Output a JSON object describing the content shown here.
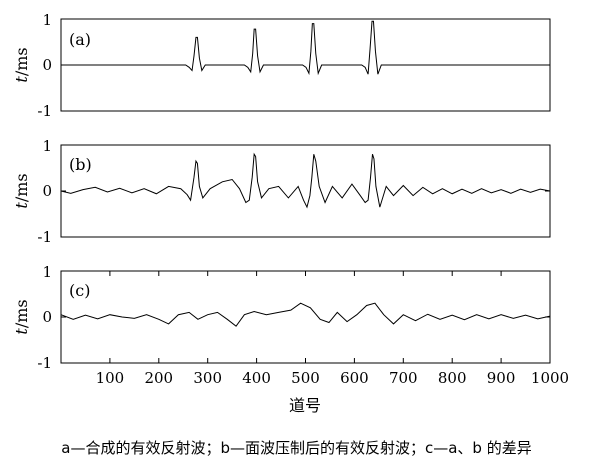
{
  "chart_data": [
    {
      "type": "line",
      "panel_label": "(a)",
      "ylabel": "t/ms",
      "ylabel_italic_part": "t",
      "ylabel_unit_part": "/ms",
      "xlim": [
        0,
        1000
      ],
      "ylim": [
        -1,
        1
      ],
      "yticks": [
        1,
        0,
        -1
      ],
      "grid": false,
      "x": [
        0,
        255,
        262,
        268,
        272,
        276,
        279,
        283,
        288,
        295,
        375,
        382,
        388,
        392,
        395,
        398,
        402,
        407,
        414,
        494,
        501,
        507,
        511,
        514,
        517,
        521,
        526,
        533,
        615,
        622,
        628,
        632,
        636,
        639,
        643,
        648,
        655,
        1000
      ],
      "y": [
        0,
        0,
        -0.05,
        -0.12,
        0.2,
        0.6,
        0.6,
        0.15,
        -0.12,
        0,
        0,
        -0.05,
        -0.15,
        0.25,
        0.78,
        0.78,
        0.2,
        -0.15,
        0,
        0,
        -0.05,
        -0.18,
        0.3,
        0.9,
        0.9,
        0.25,
        -0.18,
        0,
        0,
        -0.05,
        -0.2,
        0.35,
        0.95,
        0.95,
        0.3,
        -0.2,
        0,
        0
      ]
    },
    {
      "type": "line",
      "panel_label": "(b)",
      "ylabel": "t/ms",
      "ylabel_italic_part": "t",
      "ylabel_unit_part": "/ms",
      "xlim": [
        0,
        1000
      ],
      "ylim": [
        -1,
        1
      ],
      "yticks": [
        1,
        0,
        -1
      ],
      "grid": false,
      "x": [
        0,
        20,
        45,
        70,
        95,
        120,
        145,
        170,
        195,
        220,
        245,
        258,
        265,
        272,
        276,
        279,
        283,
        290,
        305,
        330,
        350,
        365,
        378,
        385,
        391,
        395,
        398,
        402,
        410,
        425,
        445,
        465,
        485,
        496,
        503,
        509,
        513,
        517,
        521,
        528,
        540,
        555,
        575,
        595,
        612,
        622,
        628,
        633,
        637,
        640,
        644,
        652,
        665,
        680,
        700,
        720,
        740,
        760,
        780,
        800,
        820,
        840,
        860,
        880,
        900,
        920,
        940,
        960,
        980,
        1000
      ],
      "y": [
        0,
        -0.05,
        0.03,
        0.08,
        -0.02,
        0.06,
        -0.04,
        0.05,
        -0.06,
        0.1,
        0.05,
        -0.08,
        -0.2,
        0.3,
        0.65,
        0.6,
        0.1,
        -0.15,
        0.05,
        0.2,
        0.25,
        0.05,
        -0.25,
        -0.2,
        0.3,
        0.8,
        0.75,
        0.2,
        -0.15,
        0.05,
        0.1,
        -0.15,
        0.1,
        -0.2,
        -0.35,
        -0.1,
        0.3,
        0.8,
        0.65,
        0.1,
        -0.25,
        0.1,
        -0.15,
        0.15,
        -0.1,
        -0.25,
        -0.2,
        0.3,
        0.8,
        0.7,
        0.1,
        -0.35,
        0.1,
        -0.1,
        0.12,
        -0.1,
        0.08,
        -0.06,
        0.05,
        -0.06,
        0.04,
        -0.05,
        0.05,
        -0.04,
        0.03,
        -0.05,
        0.04,
        -0.03,
        0.04,
        0
      ]
    },
    {
      "type": "line",
      "panel_label": "(c)",
      "ylabel": "t/ms",
      "ylabel_italic_part": "t",
      "ylabel_unit_part": "/ms",
      "xlim": [
        0,
        1000
      ],
      "ylim": [
        -1,
        1
      ],
      "yticks": [
        1,
        0,
        -1
      ],
      "xticks": [
        100,
        200,
        300,
        400,
        500,
        600,
        700,
        800,
        900,
        1000
      ],
      "xlabel": "道号",
      "grid": false,
      "x": [
        0,
        25,
        50,
        75,
        100,
        125,
        150,
        175,
        200,
        220,
        240,
        262,
        280,
        300,
        320,
        340,
        358,
        375,
        395,
        420,
        445,
        470,
        490,
        510,
        530,
        548,
        565,
        585,
        605,
        625,
        642,
        660,
        680,
        700,
        725,
        750,
        775,
        800,
        825,
        850,
        875,
        900,
        925,
        950,
        975,
        1000
      ],
      "y": [
        0.05,
        -0.05,
        0.04,
        -0.04,
        0.05,
        0,
        -0.03,
        0.05,
        -0.05,
        -0.15,
        0.05,
        0.1,
        -0.05,
        0.05,
        0.1,
        -0.05,
        -0.2,
        0.05,
        0.12,
        0.05,
        0.1,
        0.15,
        0.3,
        0.2,
        -0.05,
        -0.12,
        0.1,
        -0.1,
        0.05,
        0.25,
        0.3,
        0.05,
        -0.15,
        0.05,
        -0.08,
        0.06,
        -0.05,
        0.04,
        -0.06,
        0.05,
        -0.04,
        0.05,
        -0.03,
        0.04,
        -0.04,
        0.02
      ]
    }
  ],
  "caption": "a—合成的有效反射波；b—面波压制后的有效反射波；c—a、b 的差异"
}
